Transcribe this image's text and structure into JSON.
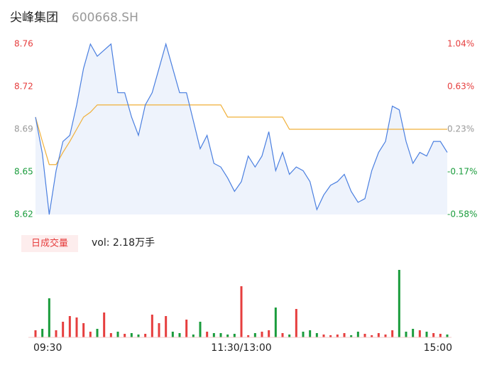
{
  "header": {
    "name": "尖峰集团",
    "code": "600668.SH"
  },
  "chart_data": {
    "type": "line",
    "categories": [
      "09:30",
      null,
      null,
      null,
      null,
      null,
      null,
      null,
      null,
      null,
      null,
      null,
      null,
      null,
      null,
      null,
      null,
      null,
      null,
      null,
      null,
      null,
      null,
      null,
      null,
      null,
      null,
      null,
      null,
      null,
      "11:30/13:00",
      null,
      null,
      null,
      null,
      null,
      null,
      null,
      null,
      null,
      null,
      null,
      null,
      null,
      null,
      null,
      null,
      null,
      null,
      null,
      null,
      null,
      null,
      null,
      null,
      null,
      null,
      null,
      null,
      null,
      "15:00"
    ],
    "series": [
      {
        "name": "price",
        "color": "#4a7fe0",
        "values": [
          8.7,
          8.67,
          8.62,
          8.656,
          8.68,
          8.685,
          8.71,
          8.74,
          8.76,
          8.75,
          8.755,
          8.76,
          8.72,
          8.72,
          8.7,
          8.685,
          8.71,
          8.72,
          8.74,
          8.76,
          8.74,
          8.72,
          8.72,
          8.697,
          8.674,
          8.685,
          8.662,
          8.659,
          8.65,
          8.639,
          8.647,
          8.668,
          8.659,
          8.668,
          8.688,
          8.656,
          8.671,
          8.653,
          8.659,
          8.656,
          8.647,
          8.624,
          8.636,
          8.644,
          8.647,
          8.653,
          8.639,
          8.63,
          8.633,
          8.656,
          8.671,
          8.68,
          8.709,
          8.706,
          8.68,
          8.662,
          8.671,
          8.668,
          8.68,
          8.68,
          8.671
        ]
      },
      {
        "name": "average",
        "color": "#f0b03a",
        "values": [
          8.7,
          8.68,
          8.661,
          8.661,
          8.671,
          8.68,
          8.69,
          8.7,
          8.704,
          8.71,
          8.71,
          8.71,
          8.71,
          8.71,
          8.71,
          8.71,
          8.71,
          8.71,
          8.71,
          8.71,
          8.71,
          8.71,
          8.71,
          8.71,
          8.71,
          8.71,
          8.71,
          8.71,
          8.7,
          8.7,
          8.7,
          8.7,
          8.7,
          8.7,
          8.7,
          8.7,
          8.7,
          8.69,
          8.69,
          8.69,
          8.69,
          8.69,
          8.69,
          8.69,
          8.69,
          8.69,
          8.69,
          8.69,
          8.69,
          8.69,
          8.69,
          8.69,
          8.69,
          8.69,
          8.69,
          8.69,
          8.69,
          8.69,
          8.69,
          8.69,
          8.69
        ]
      }
    ],
    "ylim": [
      8.62,
      8.76
    ],
    "yticks": [
      8.62,
      {
        "value": 8.655,
        "label": "8.65"
      },
      8.69,
      {
        "value": 8.725,
        "label": "8.72"
      },
      8.76
    ],
    "y2lim": [
      -0.58,
      1.04
    ],
    "y2ticks": [
      {
        "value": -0.58,
        "label": "-0.58%"
      },
      {
        "value": -0.175,
        "label": "-0.17%"
      },
      {
        "value": 0.23,
        "label": "0.23%"
      },
      {
        "value": 0.635,
        "label": "0.63%"
      },
      {
        "value": 1.04,
        "label": "1.04%"
      }
    ],
    "tick_colors": [
      "#1a9c3c",
      "#1a9c3c",
      "#999999",
      "#e63e3e",
      "#e63e3e"
    ],
    "volume": {
      "title": "日成交量",
      "summary": "vol: 2.18万手",
      "up_color": "#e63e3e",
      "down_color": "#1a9c3c",
      "values": [
        100,
        120,
        550,
        100,
        220,
        300,
        280,
        200,
        80,
        120,
        350,
        60,
        80,
        50,
        60,
        40,
        50,
        320,
        200,
        300,
        80,
        60,
        250,
        40,
        220,
        80,
        60,
        60,
        40,
        50,
        720,
        30,
        60,
        80,
        100,
        420,
        60,
        40,
        400,
        80,
        100,
        60,
        40,
        30,
        40,
        60,
        30,
        80,
        50,
        30,
        60,
        40,
        100,
        950,
        80,
        120,
        100,
        80,
        60,
        50,
        40
      ]
    }
  }
}
